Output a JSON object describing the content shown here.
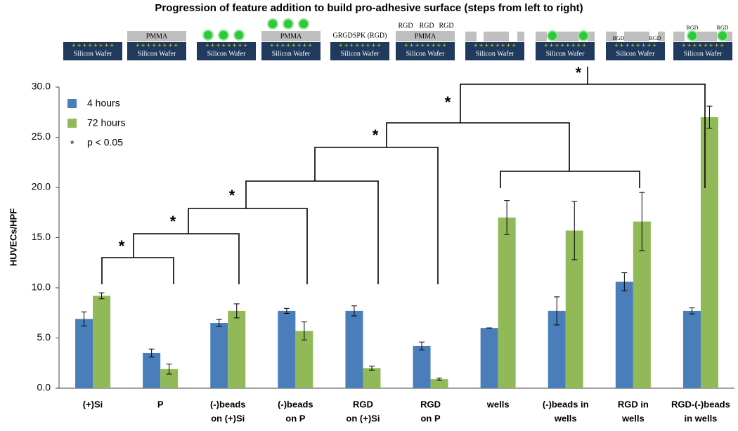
{
  "chart_data": {
    "type": "bar",
    "title": "Progression of feature addition to build pro-adhesive surface (steps from left to right)",
    "ylabel": "HUVECs/HPF",
    "categories": [
      [
        "(+)Si"
      ],
      [
        "P"
      ],
      [
        "(-)beads",
        "on (+)Si"
      ],
      [
        "(-)beads",
        "on P"
      ],
      [
        "RGD",
        "on (+)Si"
      ],
      [
        "RGD",
        "on P"
      ],
      [
        "wells"
      ],
      [
        "(-)beads in",
        "wells"
      ],
      [
        "RGD in",
        "wells"
      ],
      [
        "RGD-(-)beads",
        "in wells"
      ]
    ],
    "series": [
      {
        "name": "4 hours",
        "color": "#4a7ebb",
        "values": [
          6.9,
          3.5,
          6.5,
          7.7,
          7.7,
          4.2,
          6.0,
          7.7,
          10.6,
          7.7
        ],
        "errors": [
          0.7,
          0.4,
          0.35,
          0.25,
          0.5,
          0.4,
          0,
          1.4,
          0.9,
          0.3
        ]
      },
      {
        "name": "72 hours",
        "color": "#92b957",
        "values": [
          9.2,
          1.9,
          7.7,
          5.7,
          2.0,
          0.9,
          17.0,
          15.7,
          16.6,
          27.0
        ],
        "errors": [
          0.3,
          0.5,
          0.7,
          0.9,
          0.2,
          0.1,
          1.7,
          2.9,
          2.9,
          1.1
        ]
      }
    ],
    "ylim": [
      0,
      30
    ],
    "yticks": [
      {
        "value": 0,
        "label": "0.0"
      },
      {
        "value": 5,
        "label": "5.0"
      },
      {
        "value": 10,
        "label": "10.0"
      },
      {
        "value": 15,
        "label": "15.0"
      },
      {
        "value": 20,
        "label": "20.0"
      },
      {
        "value": 25,
        "label": "25.0"
      },
      {
        "value": 30,
        "label": "30.0"
      }
    ],
    "legend_note": {
      "symbol": "*",
      "text": "p < 0.05"
    },
    "annotations": [
      "*",
      "*",
      "*",
      "*",
      "*",
      "*"
    ]
  },
  "schematic": {
    "wafer": "Silicon Wafer",
    "charges": "+ + + + + + + +",
    "pmma": "PMMA",
    "rgd_full": "GRGDSPK (RGD)",
    "rgd": "RGD"
  }
}
